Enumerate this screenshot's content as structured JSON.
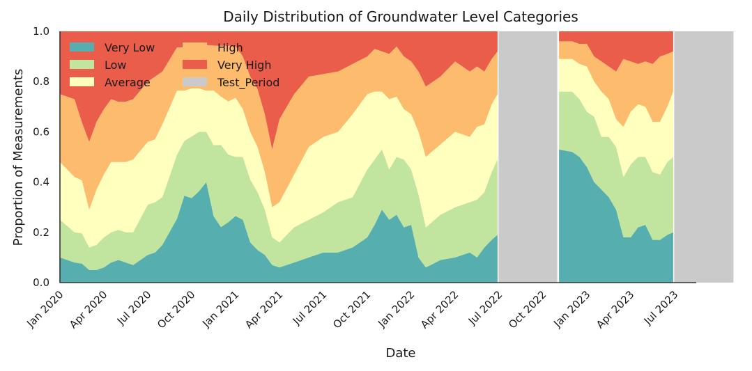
{
  "chart_data": {
    "type": "area",
    "stacked": "normalized",
    "title": "Daily Distribution of Groundwater Level Categories",
    "xlabel": "Date",
    "ylabel": "Proportion of Measurements",
    "ylim": [
      0,
      1
    ],
    "xlim": [
      "2020-01",
      "2023-09"
    ],
    "grid": false,
    "legend_position": "top-left",
    "x_tick_labels": [
      "Jan 2020",
      "Apr 2020",
      "Jul 2020",
      "Oct 2020",
      "Jan 2021",
      "Apr 2021",
      "Jul 2021",
      "Oct 2021",
      "Jan 2022",
      "Apr 2022",
      "Jul 2022",
      "Oct 2022",
      "Jan 2023",
      "Apr 2023",
      "Jul 2023"
    ],
    "y_tick_labels": [
      "0.0",
      "0.2",
      "0.4",
      "0.6",
      "0.8",
      "1.0"
    ],
    "y_ticks": [
      0,
      0.2,
      0.4,
      0.6,
      0.8,
      1.0
    ],
    "x_ticks_months": [
      0,
      3,
      6,
      9,
      12,
      15,
      18,
      21,
      24,
      27,
      30,
      33,
      36,
      39,
      42
    ],
    "legend": [
      "Very Low",
      "Low",
      "Average",
      "High",
      "Very High",
      "Test_Period"
    ],
    "test_periods": [
      {
        "name": "Test_Period",
        "start_month": 29.97,
        "end_month": 33.98
      },
      {
        "name": "Test_Period",
        "start_month": 41.97,
        "end_month": 46.02
      }
    ],
    "segments": [
      {
        "month": [
          0,
          1,
          1.5,
          2,
          2.5,
          3,
          3.5,
          4,
          4.5,
          5,
          6,
          6.5,
          7,
          8,
          8.5,
          9,
          9.5,
          10,
          10.5,
          11,
          11.5,
          12,
          12.5,
          13,
          13.5,
          14,
          14.5,
          15,
          16,
          17,
          18,
          19,
          20,
          21,
          21.5,
          22,
          22.5,
          23,
          23.5,
          24,
          24.5,
          25,
          26,
          27,
          28,
          28.5,
          29,
          29.5,
          29.9
        ],
        "series": [
          {
            "name": "Very Low",
            "values": [
              0.1,
              0.08,
              0.075,
              0.05,
              0.05,
              0.06,
              0.08,
              0.09,
              0.08,
              0.07,
              0.11,
              0.12,
              0.15,
              0.28,
              0.38,
              0.37,
              0.4,
              0.44,
              0.28,
              0.23,
              0.25,
              0.27,
              0.25,
              0.16,
              0.13,
              0.11,
              0.07,
              0.06,
              0.08,
              0.1,
              0.12,
              0.12,
              0.14,
              0.18,
              0.23,
              0.29,
              0.25,
              0.27,
              0.22,
              0.23,
              0.1,
              0.06,
              0.09,
              0.1,
              0.12,
              0.1,
              0.14,
              0.17,
              0.19
            ]
          },
          {
            "name": "Low",
            "values": [
              0.15,
              0.12,
              0.12,
              0.09,
              0.1,
              0.12,
              0.12,
              0.12,
              0.12,
              0.13,
              0.2,
              0.2,
              0.19,
              0.28,
              0.24,
              0.27,
              0.26,
              0.22,
              0.3,
              0.34,
              0.28,
              0.24,
              0.25,
              0.25,
              0.23,
              0.18,
              0.11,
              0.1,
              0.14,
              0.15,
              0.16,
              0.2,
              0.2,
              0.27,
              0.26,
              0.24,
              0.2,
              0.23,
              0.27,
              0.22,
              0.25,
              0.16,
              0.18,
              0.2,
              0.2,
              0.23,
              0.22,
              0.27,
              0.3
            ]
          },
          {
            "name": "Average",
            "values": [
              0.23,
              0.22,
              0.21,
              0.15,
              0.22,
              0.25,
              0.28,
              0.27,
              0.28,
              0.29,
              0.25,
              0.25,
              0.29,
              0.28,
              0.22,
              0.21,
              0.19,
              0.18,
              0.23,
              0.2,
              0.22,
              0.24,
              0.19,
              0.19,
              0.18,
              0.15,
              0.12,
              0.16,
              0.21,
              0.29,
              0.3,
              0.28,
              0.33,
              0.3,
              0.27,
              0.23,
              0.28,
              0.24,
              0.2,
              0.22,
              0.25,
              0.28,
              0.28,
              0.3,
              0.26,
              0.29,
              0.27,
              0.27,
              0.26
            ]
          },
          {
            "name": "High",
            "values": [
              0.27,
              0.31,
              0.23,
              0.27,
              0.27,
              0.26,
              0.25,
              0.24,
              0.24,
              0.24,
              0.24,
              0.25,
              0.21,
              0.19,
              0.19,
              0.19,
              0.19,
              0.2,
              0.19,
              0.21,
              0.23,
              0.21,
              0.21,
              0.22,
              0.23,
              0.23,
              0.23,
              0.33,
              0.32,
              0.28,
              0.25,
              0.24,
              0.2,
              0.15,
              0.17,
              0.16,
              0.18,
              0.2,
              0.21,
              0.21,
              0.24,
              0.28,
              0.27,
              0.28,
              0.26,
              0.24,
              0.21,
              0.18,
              0.17
            ]
          },
          {
            "name": "Very High",
            "values": [
              0.25,
              0.27,
              0.36,
              0.44,
              0.36,
              0.31,
              0.27,
              0.28,
              0.28,
              0.27,
              0.2,
              0.18,
              0.16,
              0.07,
              0.07,
              0.06,
              0.06,
              0.06,
              0.06,
              0.06,
              0.06,
              0.06,
              0.1,
              0.18,
              0.23,
              0.33,
              0.47,
              0.35,
              0.25,
              0.18,
              0.17,
              0.16,
              0.13,
              0.1,
              0.07,
              0.08,
              0.09,
              0.06,
              0.1,
              0.12,
              0.16,
              0.22,
              0.18,
              0.12,
              0.16,
              0.14,
              0.16,
              0.11,
              0.08
            ]
          }
        ]
      },
      {
        "month": [
          34.1,
          35,
          35.5,
          36,
          36.5,
          37,
          37.5,
          38,
          38.5,
          39,
          39.5,
          40,
          40.5,
          41,
          41.5,
          41.9
        ],
        "series": [
          {
            "name": "Very Low",
            "values": [
              0.53,
              0.52,
              0.5,
              0.46,
              0.4,
              0.37,
              0.34,
              0.29,
              0.18,
              0.18,
              0.22,
              0.23,
              0.17,
              0.17,
              0.19,
              0.2
            ]
          },
          {
            "name": "Low",
            "values": [
              0.23,
              0.24,
              0.23,
              0.22,
              0.26,
              0.21,
              0.24,
              0.25,
              0.24,
              0.29,
              0.28,
              0.27,
              0.27,
              0.26,
              0.29,
              0.3
            ]
          },
          {
            "name": "Average",
            "values": [
              0.13,
              0.13,
              0.14,
              0.18,
              0.14,
              0.18,
              0.15,
              0.11,
              0.2,
              0.21,
              0.21,
              0.2,
              0.2,
              0.21,
              0.22,
              0.26
            ]
          },
          {
            "name": "High",
            "values": [
              0.07,
              0.07,
              0.08,
              0.09,
              0.1,
              0.12,
              0.13,
              0.19,
              0.27,
              0.2,
              0.16,
              0.18,
              0.23,
              0.26,
              0.21,
              0.16
            ]
          },
          {
            "name": "Very High",
            "values": [
              0.04,
              0.04,
              0.05,
              0.05,
              0.1,
              0.12,
              0.14,
              0.16,
              0.11,
              0.12,
              0.13,
              0.12,
              0.13,
              0.1,
              0.09,
              0.08
            ]
          }
        ]
      }
    ]
  },
  "colors": {
    "Very Low": "#57aeae",
    "Low": "#c1e49f",
    "Average": "#ffffbe",
    "High": "#fdbb6e",
    "Very High": "#e95d4a",
    "Test_Period": "#cacaca",
    "axis": "#333333"
  }
}
